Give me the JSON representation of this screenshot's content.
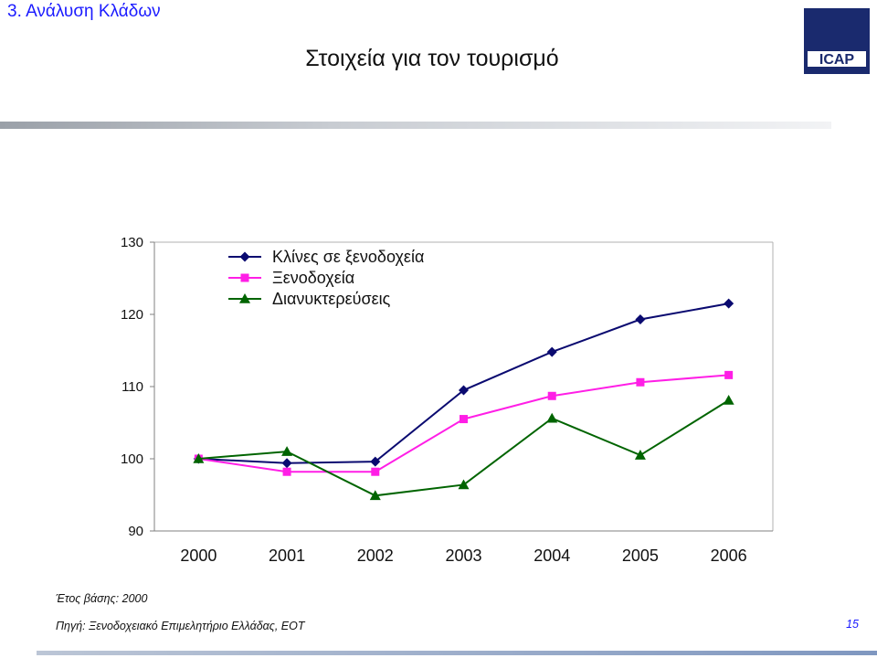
{
  "header": {
    "section_title": "3. Ανάλυση Κλάδων",
    "slide_title": "Στοιχεία για τον τουρισμό",
    "logo_text": "ICAP"
  },
  "chart_data": {
    "type": "line",
    "title": "",
    "xlabel": "",
    "ylabel": "",
    "categories": [
      "2000",
      "2001",
      "2002",
      "2003",
      "2004",
      "2005",
      "2006"
    ],
    "ylim": [
      90,
      130
    ],
    "yticks": [
      90,
      100,
      110,
      120,
      130
    ],
    "grid": false,
    "legend_position": "top-left",
    "series": [
      {
        "name": "Κλίνες σε ξενοδοχεία",
        "color": "#0a0a70",
        "marker": "diamond",
        "values": [
          100,
          99.4,
          99.6,
          109.5,
          114.8,
          119.3,
          121.5
        ]
      },
      {
        "name": "Ξενοδοχεία",
        "color": "#ff1ee6",
        "marker": "square",
        "values": [
          100,
          98.2,
          98.2,
          105.5,
          108.7,
          110.6,
          111.6
        ]
      },
      {
        "name": "Διανυκτερεύσεις",
        "color": "#006400",
        "marker": "triangle",
        "values": [
          100,
          101,
          94.9,
          96.4,
          105.6,
          100.5,
          108.1
        ]
      }
    ]
  },
  "footer": {
    "base_year_note": "Έτος βάσης: 2000",
    "source_note": "Πηγή: Ξενοδοχειακό Επιμελητήριο Ελλάδας, ΕΟΤ",
    "page_number": "15"
  }
}
